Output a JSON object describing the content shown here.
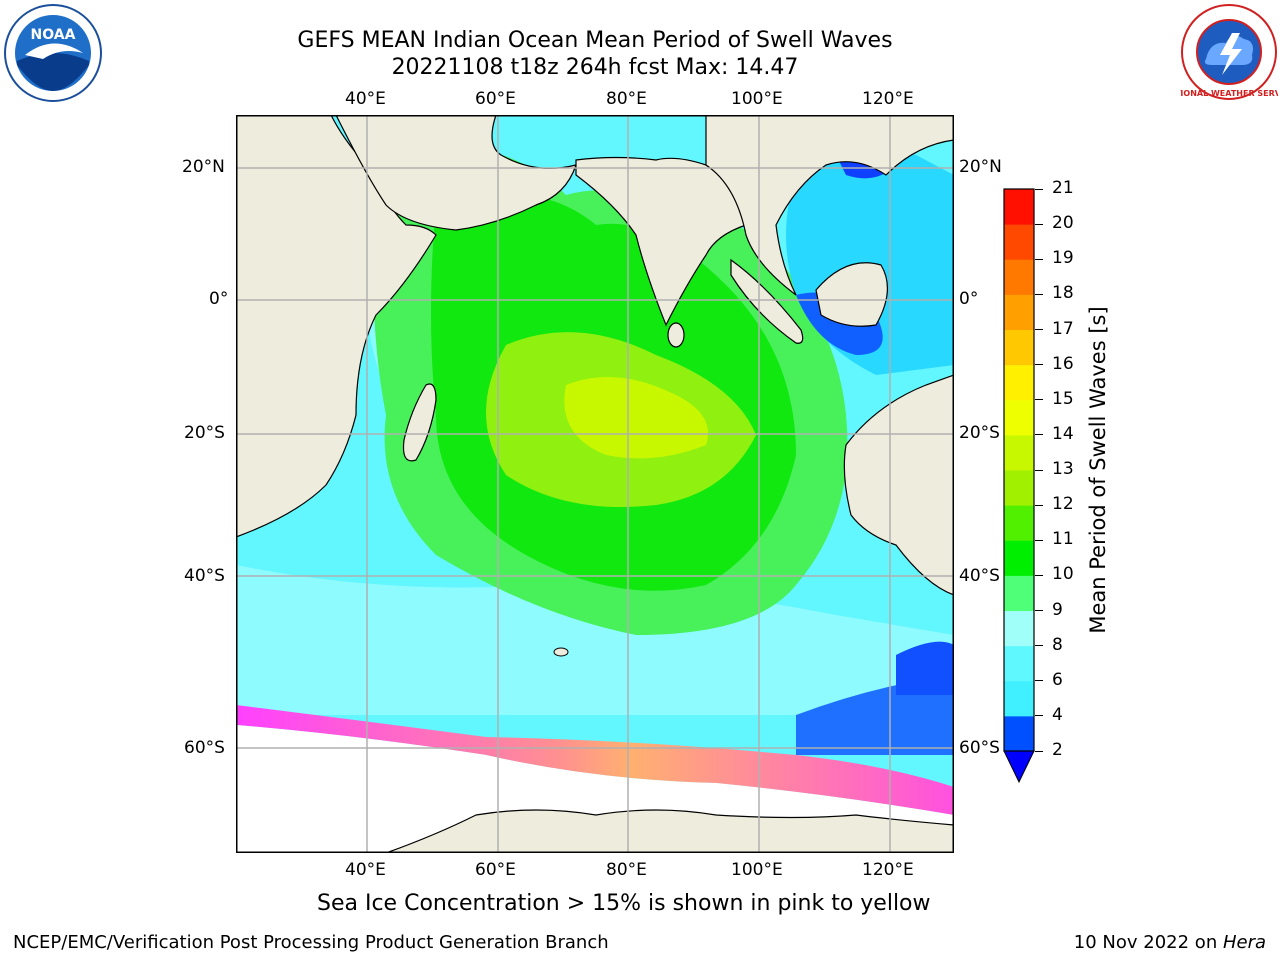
{
  "header": {
    "title_line1": "GEFS MEAN Indian Ocean Mean Period of Swell Waves",
    "title_line2": "20221108 t18z 264h fcst   Max: 14.47"
  },
  "logos": {
    "left": {
      "icon": "noaa-logo-icon",
      "text": "NOAA"
    },
    "right": {
      "icon": "nws-logo-icon",
      "text": "NATIONAL WEATHER SERVICE"
    }
  },
  "map": {
    "lon_ticks_top": [
      "40°E",
      "60°E",
      "80°E",
      "100°E",
      "120°E"
    ],
    "lon_ticks_bottom": [
      "40°E",
      "60°E",
      "80°E",
      "100°E",
      "120°E"
    ],
    "lat_ticks_left": [
      "20°N",
      "0°",
      "20°S",
      "40°S",
      "60°S"
    ],
    "lat_ticks_right": [
      "20°N",
      "0°",
      "20°S",
      "40°S",
      "60°S"
    ],
    "colors": {
      "land": "#eeecdc",
      "ice": "#ffffff",
      "grid": "#b0b0b0"
    }
  },
  "colorbar": {
    "title": "Mean Period of Swell Waves [s]",
    "labels": [
      "2",
      "4",
      "6",
      "8",
      "9",
      "10",
      "11",
      "12",
      "13",
      "14",
      "15",
      "16",
      "17",
      "18",
      "19",
      "20",
      "21"
    ],
    "colors": [
      "#0050ff",
      "#00e8ff",
      "#40f0ff",
      "#60f8ff",
      "#a0fff8",
      "#50ff78",
      "#00ee00",
      "#50f000",
      "#a0f000",
      "#c8f800",
      "#eeff00",
      "#fff000",
      "#ffc800",
      "#ffa000",
      "#ff7800",
      "#ff4800",
      "#ff1000"
    ],
    "extend_color": "#0000ff"
  },
  "caption": "Sea Ice Concentration > 15% is shown in pink to yellow",
  "footer": {
    "left": "NCEP/EMC/Verification Post Processing Product Generation Branch",
    "right_date": "10 Nov 2022 on ",
    "right_host": "Hera"
  }
}
